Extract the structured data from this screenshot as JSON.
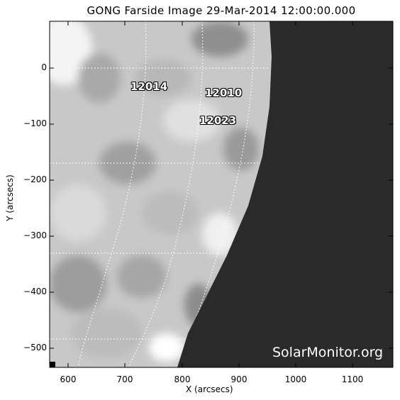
{
  "figure": {
    "title": "GONG Farside Image 29-Mar-2014 12:00:00.000",
    "xlabel": "X (arcsecs)",
    "ylabel": "Y (arcsecs)",
    "x_ticks": [
      "600",
      "700",
      "800",
      "900",
      "1000",
      "1100"
    ],
    "y_ticks": [
      "0",
      "−100",
      "−200",
      "−300",
      "−400",
      "−500"
    ],
    "watermark": "SolarMonitor.org",
    "active_regions": [
      {
        "id": "12014"
      },
      {
        "id": "12010"
      },
      {
        "id": "12023"
      }
    ]
  },
  "colors": {
    "background": "#2a2a2a",
    "disk_light": "#e6e6e6",
    "disk_dark": "#8a8a8a",
    "grid": "#ffffff"
  }
}
